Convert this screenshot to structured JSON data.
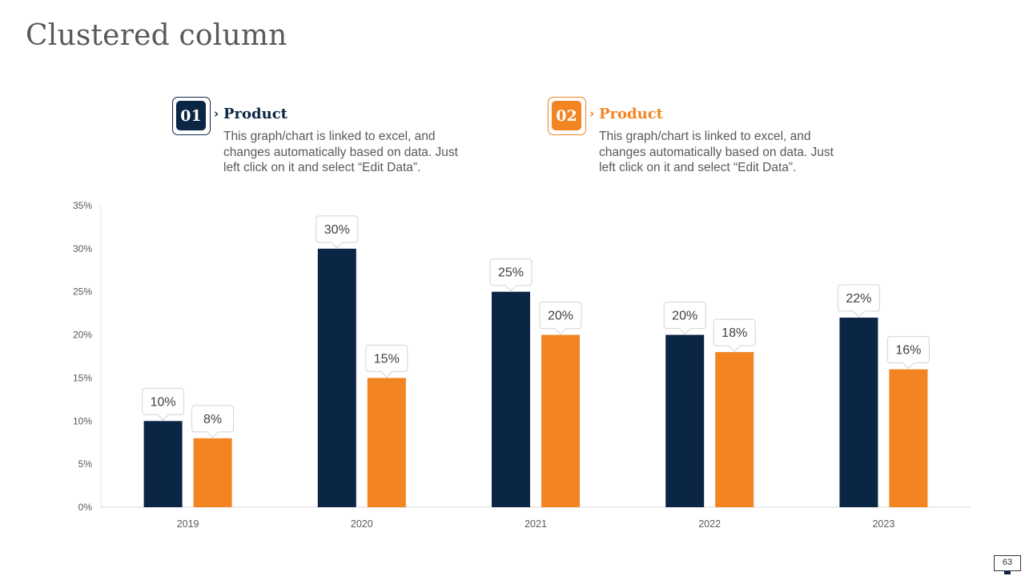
{
  "slide": {
    "title": "Clustered column",
    "page_number": "63"
  },
  "legend": [
    {
      "number": "01",
      "heading": "Product",
      "text": "This graph/chart is linked to excel, and changes automatically based on data. Just left click on it and select “Edit Data”.",
      "color": "#0b2545"
    },
    {
      "number": "02",
      "heading": "Product",
      "text": "This graph/chart is linked to excel, and changes automatically based on data. Just left click on it and select “Edit Data”.",
      "color": "#f28422"
    }
  ],
  "chart_data": {
    "type": "bar",
    "categories": [
      "2019",
      "2020",
      "2021",
      "2022",
      "2023"
    ],
    "series": [
      {
        "values": [
          10,
          30,
          25,
          20,
          22
        ],
        "color": "#0b2545"
      },
      {
        "values": [
          8,
          15,
          20,
          18,
          16
        ],
        "color": "#f28422"
      }
    ],
    "y_ticks": [
      0,
      5,
      10,
      15,
      20,
      25,
      30,
      35
    ],
    "ylim": [
      0,
      35
    ],
    "value_suffix": "%",
    "data_labels": "callouts",
    "grid": false,
    "legend": "top"
  }
}
